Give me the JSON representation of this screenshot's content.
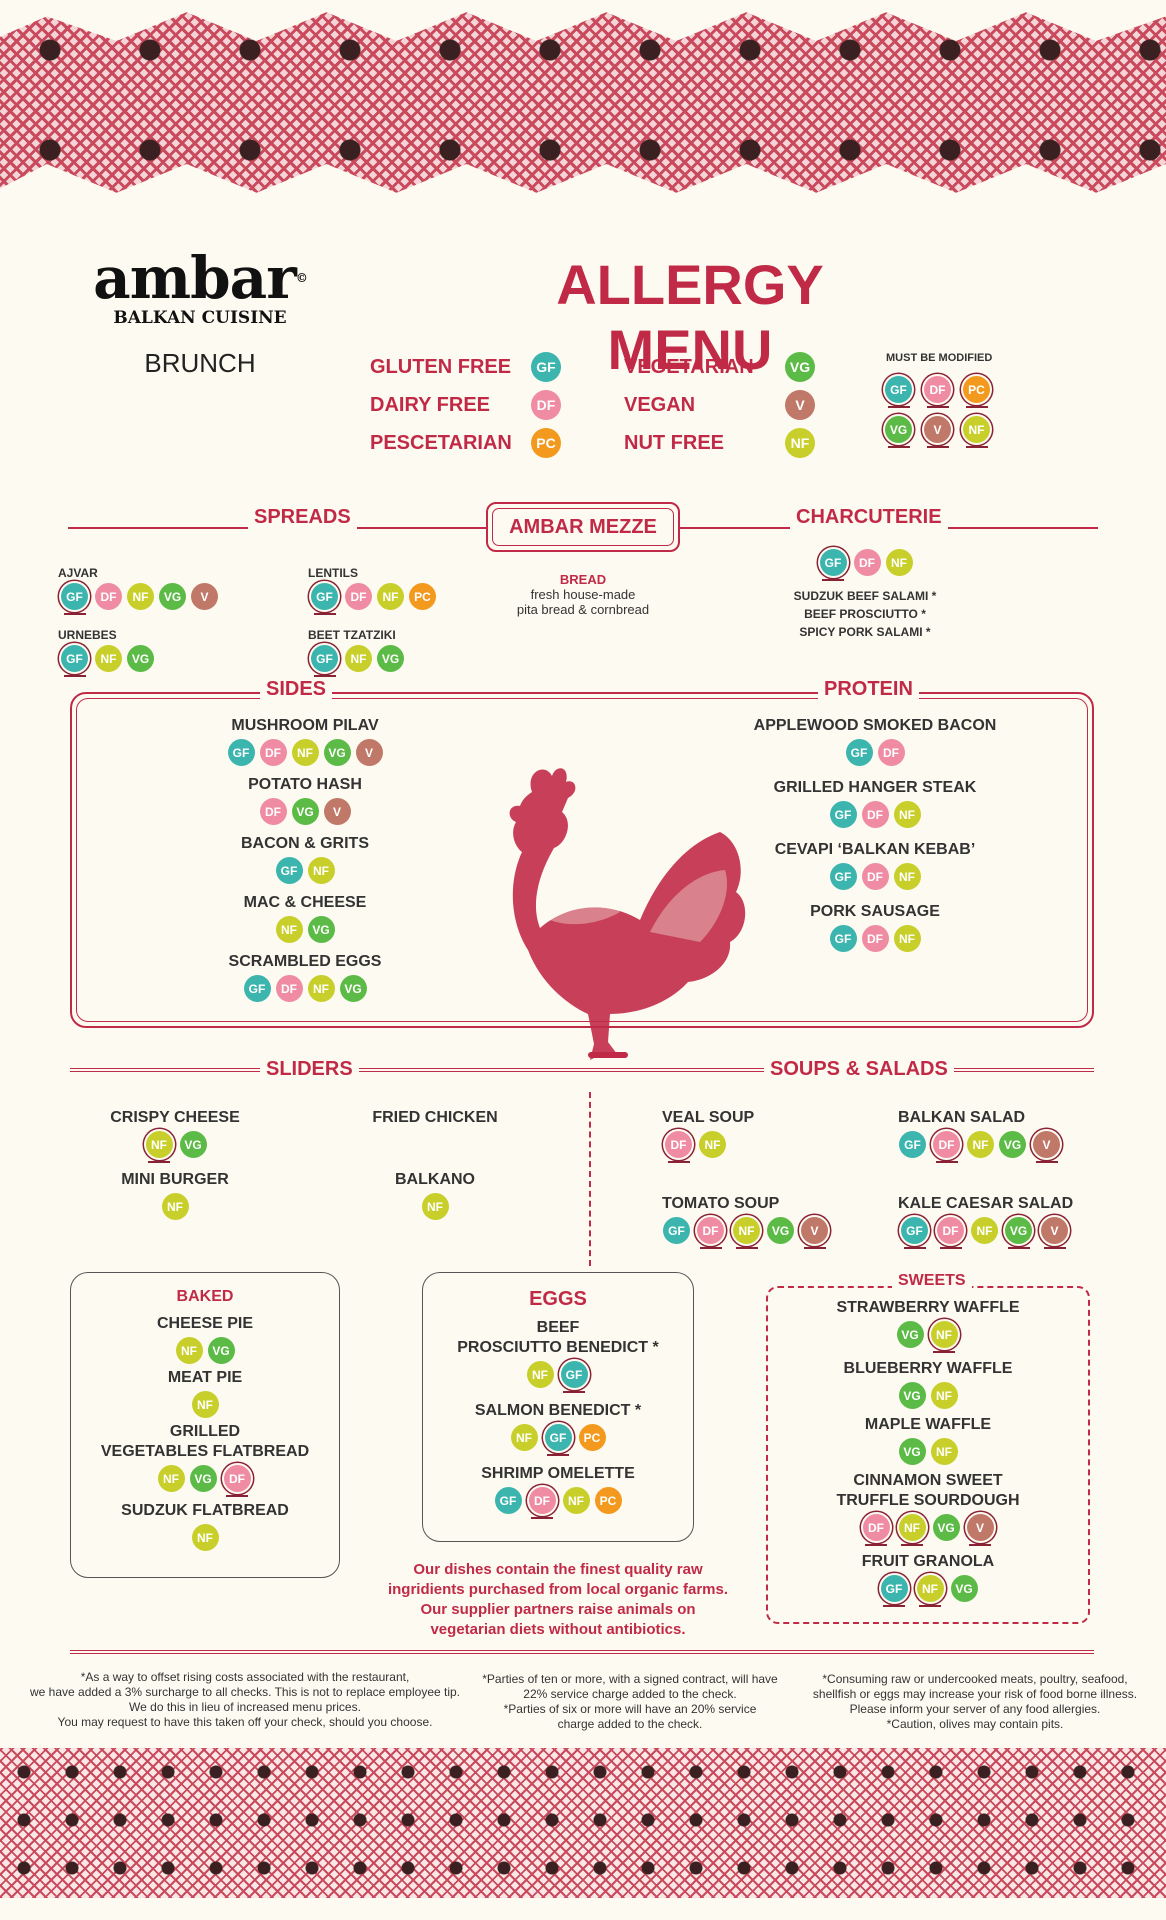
{
  "header": {
    "logo_name": "ambar",
    "logo_copyright": "©",
    "logo_sub": "BALKAN CUISINE",
    "meal": "BRUNCH",
    "title": "ALLERGY MENU"
  },
  "legend": {
    "items": [
      {
        "label": "GLUTEN FREE",
        "code": "GF"
      },
      {
        "label": "DAIRY FREE",
        "code": "DF"
      },
      {
        "label": "PESCETARIAN",
        "code": "PC"
      },
      {
        "label": "VEGETARIAN",
        "code": "VG"
      },
      {
        "label": "VEGAN",
        "code": "V"
      },
      {
        "label": "NUT FREE",
        "code": "NF"
      }
    ],
    "must_be_modified": "MUST BE MODIFIED",
    "modified_codes": [
      "GF",
      "DF",
      "PC",
      "VG",
      "V",
      "NF"
    ]
  },
  "sections": {
    "spreads": "SPREADS",
    "mezze": "AMBAR MEZZE",
    "charcuterie": "CHARCUTERIE",
    "sides": "SIDES",
    "protein": "PROTEIN",
    "sliders": "SLIDERS",
    "soups_salads": "SOUPS & SALADS",
    "baked": "BAKED",
    "eggs": "EGGS",
    "sweets": "SWEETS"
  },
  "spreads": [
    {
      "name": "AJVAR",
      "badges": [
        "GF*",
        "DF",
        "NF",
        "VG",
        "V"
      ]
    },
    {
      "name": "LENTILS",
      "badges": [
        "GF*",
        "DF",
        "NF",
        "PC"
      ]
    },
    {
      "name": "URNEBES",
      "badges": [
        "GF*",
        "NF",
        "VG"
      ]
    },
    {
      "name": "BEET TZATZIKI",
      "badges": [
        "GF*",
        "NF",
        "VG"
      ]
    }
  ],
  "mezze": {
    "bread_title": "BREAD",
    "bread_line1": "fresh house-made",
    "bread_line2": "pita bread & cornbread"
  },
  "charcuterie": {
    "badges": [
      "GF*",
      "DF",
      "NF"
    ],
    "items": [
      "SUDZUK BEEF SALAMI *",
      "BEEF PROSCIUTTO *",
      "SPICY PORK SALAMI *"
    ]
  },
  "sides": [
    {
      "name": "MUSHROOM PILAV",
      "badges": [
        "GF",
        "DF",
        "NF",
        "VG",
        "V"
      ]
    },
    {
      "name": "POTATO HASH",
      "badges": [
        "DF",
        "VG",
        "V"
      ]
    },
    {
      "name": "BACON & GRITS",
      "badges": [
        "GF",
        "NF"
      ]
    },
    {
      "name": "MAC & CHEESE",
      "badges": [
        "NF",
        "VG"
      ]
    },
    {
      "name": "SCRAMBLED EGGS",
      "badges": [
        "GF",
        "DF",
        "NF",
        "VG"
      ]
    }
  ],
  "protein": [
    {
      "name": "APPLEWOOD SMOKED BACON",
      "badges": [
        "GF",
        "DF"
      ]
    },
    {
      "name": "GRILLED HANGER STEAK",
      "badges": [
        "GF",
        "DF",
        "NF"
      ]
    },
    {
      "name": "CEVAPI ‘BALKAN KEBAB’",
      "badges": [
        "GF",
        "DF",
        "NF"
      ]
    },
    {
      "name": "PORK SAUSAGE",
      "badges": [
        "GF",
        "DF",
        "NF"
      ]
    }
  ],
  "sliders": [
    {
      "name": "CRISPY CHEESE",
      "badges": [
        "NF*",
        "VG"
      ]
    },
    {
      "name": "FRIED CHICKEN",
      "badges": []
    },
    {
      "name": "MINI BURGER",
      "badges": [
        "NF"
      ]
    },
    {
      "name": "BALKANO",
      "badges": [
        "NF"
      ]
    }
  ],
  "soups_salads": [
    {
      "name": "VEAL SOUP",
      "badges": [
        "DF*",
        "NF"
      ]
    },
    {
      "name": "BALKAN SALAD",
      "badges": [
        "GF",
        "DF*",
        "NF",
        "VG",
        "V*"
      ]
    },
    {
      "name": "TOMATO SOUP",
      "badges": [
        "GF",
        "DF*",
        "NF*",
        "VG",
        "V*"
      ]
    },
    {
      "name": "KALE CAESAR SALAD",
      "badges": [
        "GF*",
        "DF*",
        "NF",
        "VG*",
        "V*"
      ]
    }
  ],
  "baked": [
    {
      "name": "CHEESE PIE",
      "badges": [
        "NF",
        "VG"
      ]
    },
    {
      "name": "MEAT PIE",
      "badges": [
        "NF"
      ]
    },
    {
      "name": "GRILLED\nVEGETABLES FLATBREAD",
      "line1": "GRILLED",
      "line2": "VEGETABLES FLATBREAD",
      "badges": [
        "NF",
        "VG",
        "DF*"
      ]
    },
    {
      "name": "SUDZUK FLATBREAD",
      "badges": [
        "NF"
      ]
    }
  ],
  "eggs": [
    {
      "line1": "BEEF",
      "line2": "PROSCIUTTO BENEDICT *",
      "badges": [
        "NF",
        "GF*"
      ]
    },
    {
      "line1": "SALMON BENEDICT *",
      "line2": "",
      "badges": [
        "NF",
        "GF*",
        "PC"
      ]
    },
    {
      "line1": "SHRIMP OMELETTE",
      "line2": "",
      "badges": [
        "GF",
        "DF*",
        "NF",
        "PC"
      ]
    }
  ],
  "sweets": [
    {
      "line1": "STRAWBERRY WAFFLE",
      "line2": "",
      "badges": [
        "VG",
        "NF*"
      ]
    },
    {
      "line1": "BLUEBERRY WAFFLE",
      "line2": "",
      "badges": [
        "VG",
        "NF"
      ]
    },
    {
      "line1": "MAPLE WAFFLE",
      "line2": "",
      "badges": [
        "VG",
        "NF"
      ]
    },
    {
      "line1": "CINNAMON SWEET",
      "line2": "TRUFFLE SOURDOUGH",
      "badges": [
        "DF*",
        "NF*",
        "VG",
        "V*"
      ]
    },
    {
      "line1": "FRUIT GRANOLA",
      "line2": "",
      "badges": [
        "GF*",
        "NF*",
        "VG"
      ]
    }
  ],
  "quality": [
    "Our dishes contain the finest quality raw",
    "ingridients purchased from local organic farms.",
    "Our supplier partners raise animals on",
    "vegetarian diets without antibiotics."
  ],
  "footnotes": {
    "left": [
      "*As a way to offset rising costs associated with the restaurant,",
      "we have added a 3% surcharge to all checks. This is not to replace employee tip.",
      "We do this in lieu of increased menu prices.",
      "You may request to have this taken off your check, should you choose."
    ],
    "middle": [
      "*Parties of ten or more, with a signed contract, will have",
      "22% service charge added to the check.",
      "*Parties of six or more will have an 20% service",
      "charge added to the check."
    ],
    "right": [
      "*Consuming raw or undercooked meats, poultry, seafood,",
      "shellfish or eggs may increase your risk of food borne illness.",
      "Please inform your server of any food allergies.",
      "*Caution, olives may contain pits."
    ]
  },
  "colors": {
    "accent": "#c12a47",
    "GF": "#3bb5ad",
    "DF": "#ef8ca3",
    "PC": "#f39a1e",
    "VG": "#5cbb46",
    "V": "#c07868",
    "NF": "#c8cf2a"
  }
}
